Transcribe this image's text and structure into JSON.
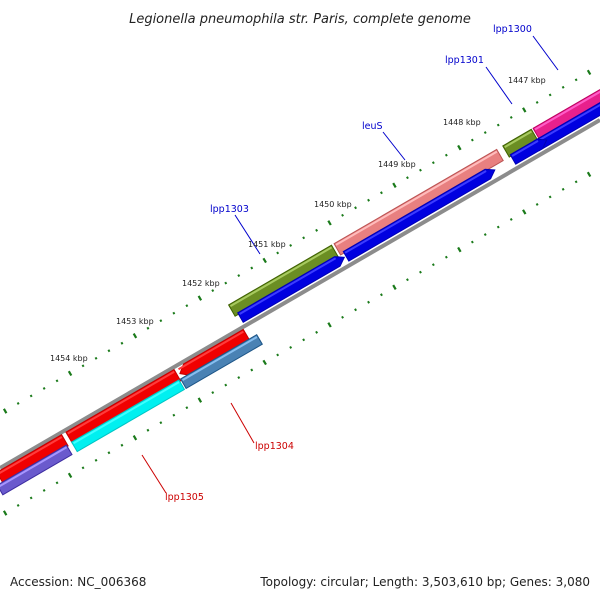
{
  "title": "Legionella pneumophila str. Paris, complete genome",
  "footer": {
    "accession": "Accession: NC_006368",
    "topology": "Topology: circular; Length: 3,503,610 bp; Genes: 3,080"
  },
  "colors": {
    "backbone": "#8c8c8c",
    "tick_dots": "#1a7a1a",
    "label_blue": "#0000cc",
    "label_red": "#cc0000"
  },
  "ticks": [
    "1447 kbp",
    "1448 kbp",
    "1449 kbp",
    "1450 kbp",
    "1451 kbp",
    "1452 kbp",
    "1453 kbp",
    "1454 kbp"
  ],
  "gene_labels": [
    {
      "text": "lpp1300",
      "color": "#0000cc"
    },
    {
      "text": "lpp1301",
      "color": "#0000cc"
    },
    {
      "text": "leuS",
      "color": "#0000cc"
    },
    {
      "text": "lpp1303",
      "color": "#0000cc"
    },
    {
      "text": "lpp1304",
      "color": "#cc0000"
    },
    {
      "text": "lpp1305",
      "color": "#cc0000"
    }
  ],
  "features": [
    {
      "name": "pink-gene-lpp1300",
      "color": "#e8208c"
    },
    {
      "name": "olive-gene-lpp1301",
      "color": "#6b8e23"
    },
    {
      "name": "salmon-gene-leuS",
      "color": "#e88080"
    },
    {
      "name": "olive-gene-lpp1303",
      "color": "#6b8e23"
    },
    {
      "name": "blue-cds-1",
      "color": "#0000e0"
    },
    {
      "name": "blue-cds-2",
      "color": "#0000e0"
    },
    {
      "name": "blue-cds-3",
      "color": "#0000e0"
    },
    {
      "name": "blue-cds-4",
      "color": "#0000e0"
    },
    {
      "name": "red-gene-lpp1304",
      "color": "#f00000"
    },
    {
      "name": "red-gene-lpp1305",
      "color": "#f00000"
    },
    {
      "name": "red-gene-left",
      "color": "#f00000"
    },
    {
      "name": "steelblue-cds-lpp1304",
      "color": "#4a82b4"
    },
    {
      "name": "cyan-cds-lpp1305",
      "color": "#00f0f0"
    },
    {
      "name": "purple-cds-left",
      "color": "#6a5acd"
    }
  ]
}
